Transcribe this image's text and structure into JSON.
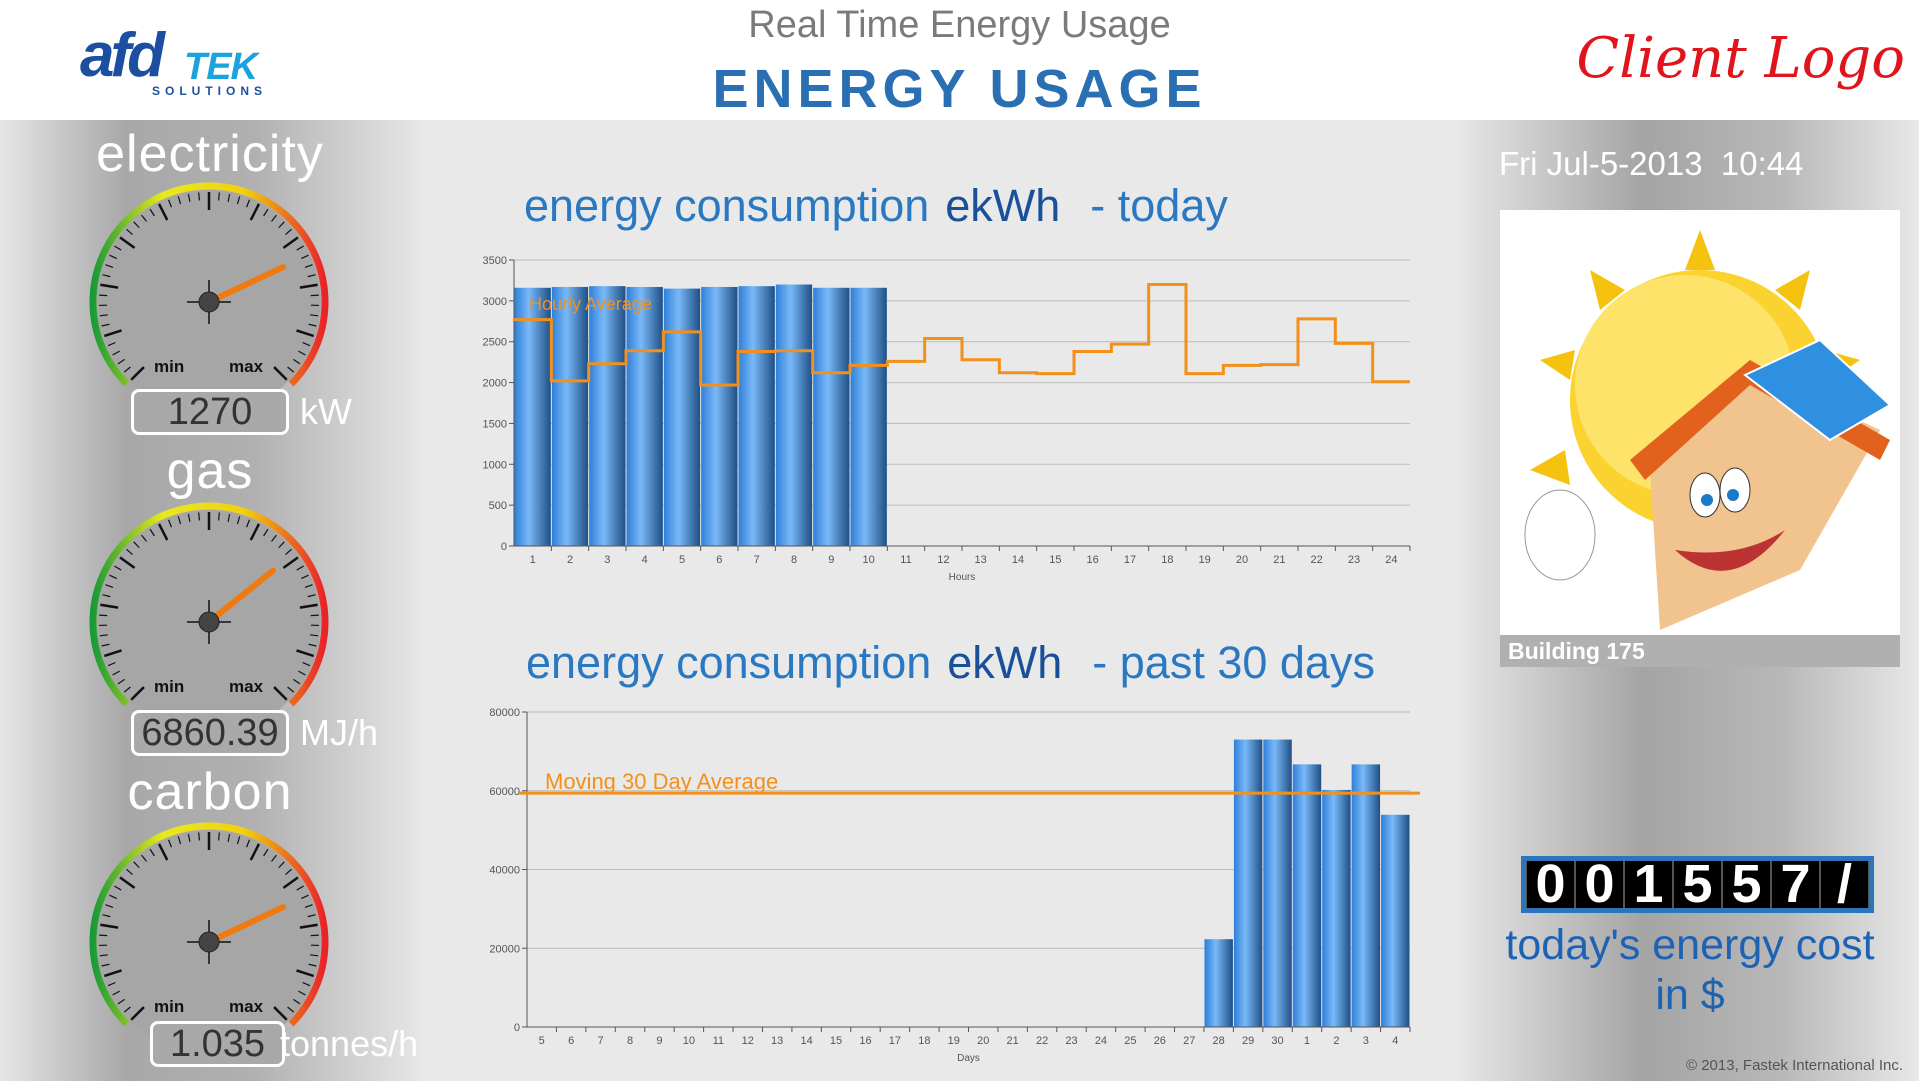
{
  "header": {
    "logo_text": "afdTEK SOLUTIONS",
    "title": "Real Time Energy Usage",
    "subtitle": "ENERGY USAGE",
    "client_logo": "Client Logo"
  },
  "gauges": [
    {
      "title": "electricity",
      "value": "1270",
      "unit": "kW",
      "level": 0.74,
      "min_label": "min",
      "max_label": "max"
    },
    {
      "title": "gas",
      "value": "6860.39",
      "unit": "MJ/h",
      "level": 0.69,
      "min_label": "min",
      "max_label": "max"
    },
    {
      "title": "carbon",
      "value": "1.035",
      "unit": "tonnes/h",
      "level": 0.74,
      "min_label": "min",
      "max_label": "max"
    }
  ],
  "charts_titles": [
    {
      "prefix": "energy consumption",
      "unit": "ekWh",
      "suffix": "- today"
    },
    {
      "prefix": "energy consumption",
      "unit": "ekWh",
      "suffix": "- past 30 days"
    }
  ],
  "colors": {
    "bar": "#3a8ee6",
    "line": "#f39019",
    "accent": "#2a6fb2"
  },
  "chart_data": [
    {
      "type": "bar",
      "xlabel": "Hours",
      "ylim": [
        0,
        3500
      ],
      "yticks": [
        0,
        500,
        1000,
        1500,
        2000,
        2500,
        3000,
        3500
      ],
      "categories": [
        "1",
        "2",
        "3",
        "4",
        "5",
        "6",
        "7",
        "8",
        "9",
        "10",
        "11",
        "12",
        "13",
        "14",
        "15",
        "16",
        "17",
        "18",
        "19",
        "20",
        "21",
        "22",
        "23",
        "24"
      ],
      "values": [
        3160,
        3170,
        3180,
        3170,
        3150,
        3170,
        3180,
        3200,
        3160,
        3160,
        null,
        null,
        null,
        null,
        null,
        null,
        null,
        null,
        null,
        null,
        null,
        null,
        null,
        null
      ],
      "line": {
        "name": "Hourly Average",
        "style": "step",
        "values": [
          2770,
          2020,
          2230,
          2390,
          2620,
          1970,
          2380,
          2390,
          2120,
          2210,
          2260,
          2540,
          2280,
          2120,
          2110,
          2380,
          2470,
          3200,
          2110,
          2210,
          2220,
          2780,
          2480,
          2010
        ]
      },
      "grid": true
    },
    {
      "type": "bar",
      "xlabel": "Days",
      "ylim": [
        0,
        80000
      ],
      "yticks": [
        0,
        20000,
        40000,
        60000,
        80000
      ],
      "categories": [
        "5",
        "6",
        "7",
        "8",
        "9",
        "10",
        "11",
        "12",
        "13",
        "14",
        "15",
        "16",
        "17",
        "18",
        "19",
        "20",
        "21",
        "22",
        "23",
        "24",
        "25",
        "26",
        "27",
        "28",
        "29",
        "30",
        "1",
        "2",
        "3",
        "4"
      ],
      "values": [
        null,
        null,
        null,
        null,
        null,
        null,
        null,
        null,
        null,
        null,
        null,
        null,
        null,
        null,
        null,
        null,
        null,
        null,
        null,
        null,
        null,
        null,
        null,
        22300,
        73000,
        73000,
        66700,
        60200,
        66700,
        53900
      ],
      "reference_line": {
        "name": "Moving 30 Day Average",
        "value": 59400
      },
      "grid": true
    }
  ],
  "right": {
    "datetime": "Fri Jul-5-2013  10:44",
    "building": "Building 175",
    "odometer": [
      "0",
      "0",
      "1",
      "5",
      "5",
      "7",
      "/"
    ],
    "cost_label_1": "today's energy cost",
    "cost_label_2": "in $"
  },
  "footer": {
    "copyright": "© 2013, Fastek International Inc."
  }
}
